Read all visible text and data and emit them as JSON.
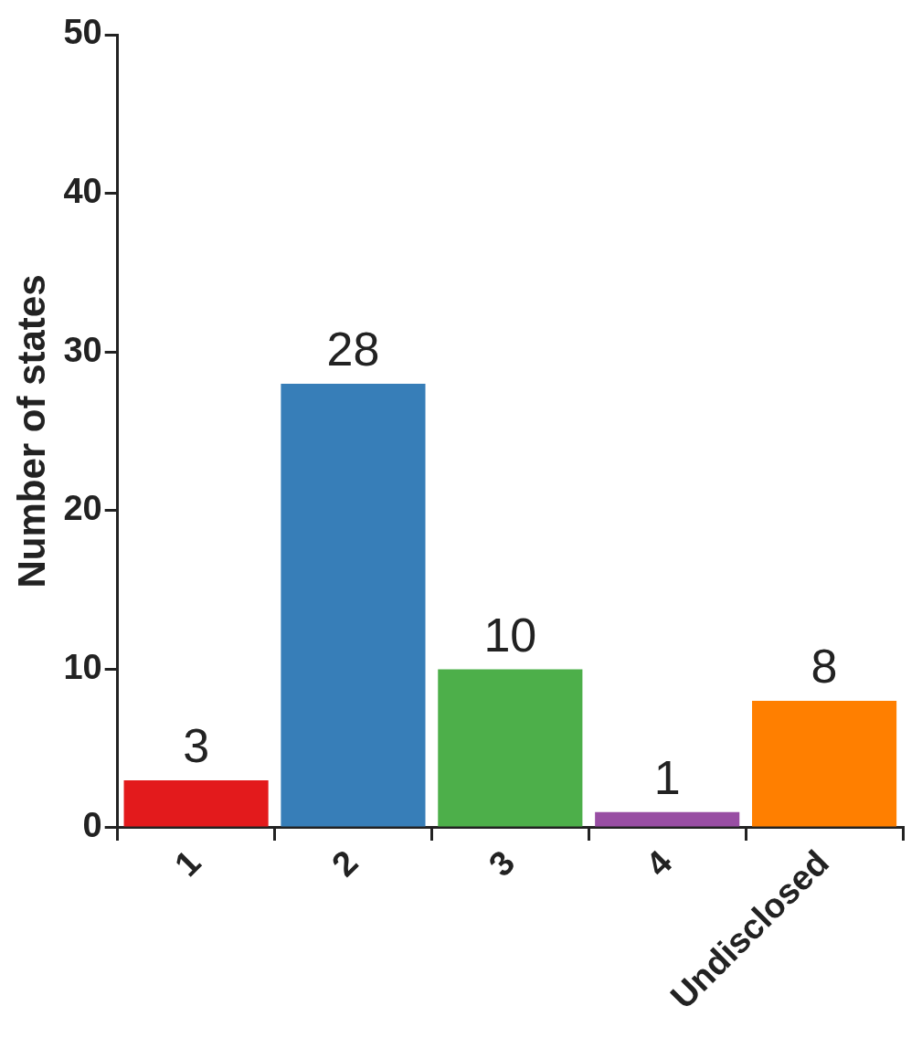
{
  "chart_data": {
    "type": "bar",
    "ylabel": "Number of states",
    "categories": [
      "1",
      "2",
      "3",
      "4",
      "Undisclosed"
    ],
    "values": [
      3,
      28,
      10,
      1,
      8
    ],
    "colors": [
      "#e31a1c",
      "#377eb8",
      "#4daf4a",
      "#984ea3",
      "#ff7f00"
    ],
    "ylim": [
      0,
      50
    ],
    "yticks": [
      0,
      10,
      20,
      30,
      40,
      50
    ],
    "grid": false,
    "legend": false,
    "data_labels": true
  }
}
